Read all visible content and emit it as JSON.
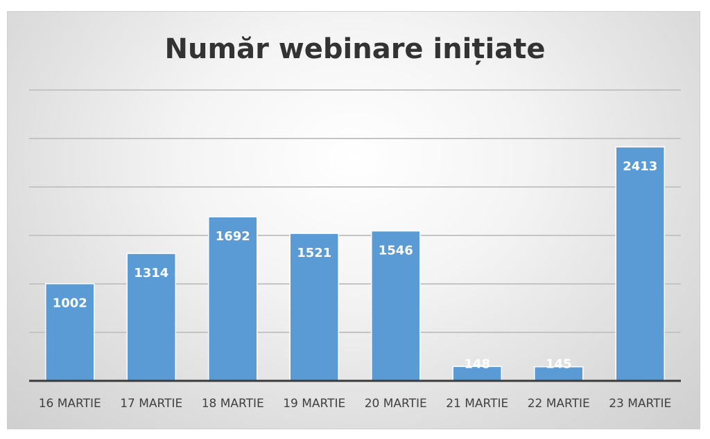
{
  "chart_data": {
    "type": "bar",
    "title": "Număr webinare inițiate",
    "xlabel": "",
    "ylabel": "",
    "categories": [
      "16 MARTIE",
      "17 MARTIE",
      "18 MARTIE",
      "19 MARTIE",
      "20 MARTIE",
      "21 MARTIE",
      "22 MARTIE",
      "23 MARTIE"
    ],
    "values": [
      1002,
      1314,
      1692,
      1521,
      1546,
      148,
      145,
      2413
    ],
    "ylim": [
      0,
      3000
    ],
    "gridlines": [
      0,
      500,
      1000,
      1500,
      2000,
      2500,
      3000
    ],
    "grid": true,
    "legend": "none",
    "bar_color": "#5b9bd5",
    "label_color": "#ffffff"
  }
}
